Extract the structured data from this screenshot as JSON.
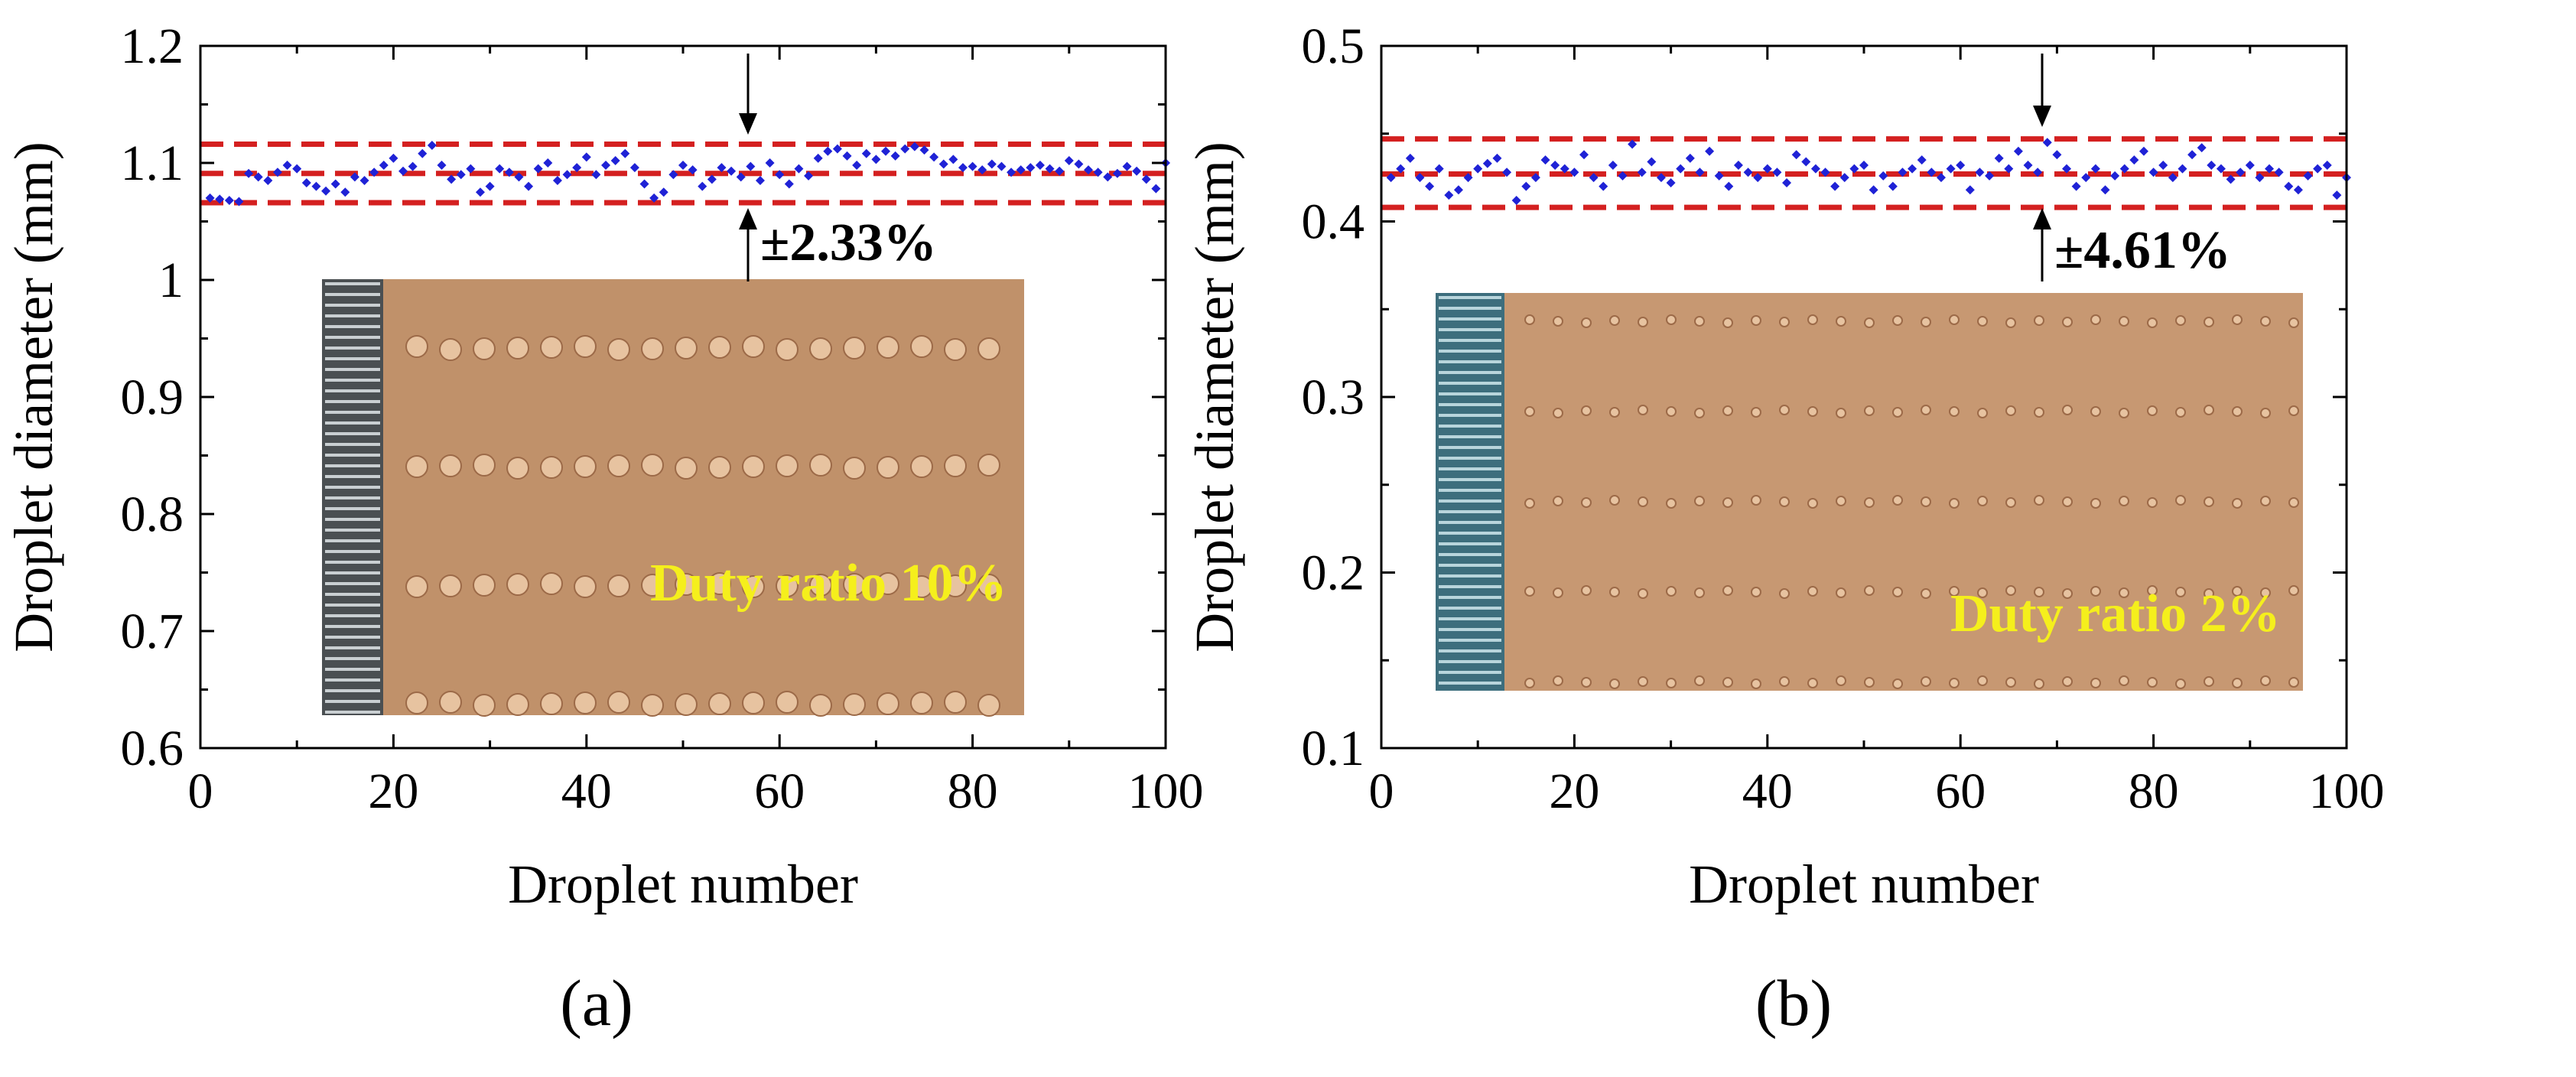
{
  "colors": {
    "points": "#1f22d6",
    "dashed": "#d42020",
    "duty_text": "#f5ef1c",
    "substrate": "#c99a72"
  },
  "chart_data": [
    {
      "type": "scatter",
      "panel_label": "(a)",
      "xlabel": "Droplet number",
      "ylabel": "Droplet diameter (mm)",
      "xlim": [
        0,
        100
      ],
      "ylim": [
        0.6,
        1.2
      ],
      "xticks": [
        "0",
        "20",
        "40",
        "60",
        "80",
        "100"
      ],
      "yticks": [
        "0.6",
        "0.7",
        "0.8",
        "0.9",
        "1",
        "1.1",
        "1.2"
      ],
      "reference_lines": [
        1.066,
        1.091,
        1.116
      ],
      "tolerance_label": "±2.33%",
      "inset_label": "Duty ratio 10%",
      "inset_rows": 4,
      "x": [
        1,
        2,
        3,
        4,
        5,
        6,
        7,
        8,
        9,
        10,
        11,
        12,
        13,
        14,
        15,
        16,
        17,
        18,
        19,
        20,
        21,
        22,
        23,
        24,
        25,
        26,
        27,
        28,
        29,
        30,
        31,
        32,
        33,
        34,
        35,
        36,
        37,
        38,
        39,
        40,
        41,
        42,
        43,
        44,
        45,
        46,
        47,
        48,
        49,
        50,
        51,
        52,
        53,
        54,
        55,
        56,
        57,
        58,
        59,
        60,
        61,
        62,
        63,
        64,
        65,
        66,
        67,
        68,
        69,
        70,
        71,
        72,
        73,
        74,
        75,
        76,
        77,
        78,
        79,
        80,
        81,
        82,
        83,
        84,
        85,
        86,
        87,
        88,
        89,
        90,
        91,
        92,
        93,
        94,
        95,
        96,
        97,
        98,
        99,
        100
      ],
      "y": [
        1.07,
        1.069,
        1.068,
        1.067,
        1.091,
        1.088,
        1.085,
        1.092,
        1.098,
        1.095,
        1.083,
        1.08,
        1.076,
        1.082,
        1.075,
        1.088,
        1.085,
        1.092,
        1.098,
        1.104,
        1.093,
        1.097,
        1.108,
        1.115,
        1.098,
        1.086,
        1.09,
        1.095,
        1.075,
        1.08,
        1.095,
        1.092,
        1.088,
        1.08,
        1.095,
        1.1,
        1.085,
        1.09,
        1.096,
        1.105,
        1.09,
        1.098,
        1.102,
        1.108,
        1.096,
        1.082,
        1.07,
        1.075,
        1.09,
        1.098,
        1.094,
        1.08,
        1.086,
        1.096,
        1.093,
        1.088,
        1.097,
        1.085,
        1.1,
        1.09,
        1.082,
        1.095,
        1.089,
        1.104,
        1.11,
        1.112,
        1.106,
        1.098,
        1.108,
        1.103,
        1.11,
        1.106,
        1.112,
        1.114,
        1.111,
        1.105,
        1.099,
        1.103,
        1.096,
        1.097,
        1.094,
        1.099,
        1.097,
        1.092,
        1.094,
        1.096,
        1.098,
        1.095,
        1.093,
        1.102,
        1.099,
        1.094,
        1.092,
        1.088,
        1.091,
        1.097,
        1.093,
        1.086,
        1.078,
        1.1
      ]
    },
    {
      "type": "scatter",
      "panel_label": "(b)",
      "xlabel": "Droplet number",
      "ylabel": "Droplet diameter (mm)",
      "xlim": [
        0,
        100
      ],
      "ylim": [
        0.1,
        0.5
      ],
      "xticks": [
        "0",
        "20",
        "40",
        "60",
        "80",
        "100"
      ],
      "yticks": [
        "0.1",
        "0.2",
        "0.3",
        "0.4",
        "0.5"
      ],
      "reference_lines": [
        0.408,
        0.427,
        0.447
      ],
      "tolerance_label": "±4.61%",
      "inset_label": "Duty ratio 2%",
      "inset_rows": 5,
      "x": [
        1,
        2,
        3,
        4,
        5,
        6,
        7,
        8,
        9,
        10,
        11,
        12,
        13,
        14,
        15,
        16,
        17,
        18,
        19,
        20,
        21,
        22,
        23,
        24,
        25,
        26,
        27,
        28,
        29,
        30,
        31,
        32,
        33,
        34,
        35,
        36,
        37,
        38,
        39,
        40,
        41,
        42,
        43,
        44,
        45,
        46,
        47,
        48,
        49,
        50,
        51,
        52,
        53,
        54,
        55,
        56,
        57,
        58,
        59,
        60,
        61,
        62,
        63,
        64,
        65,
        66,
        67,
        68,
        69,
        70,
        71,
        72,
        73,
        74,
        75,
        76,
        77,
        78,
        79,
        80,
        81,
        82,
        83,
        84,
        85,
        86,
        87,
        88,
        89,
        90,
        91,
        92,
        93,
        94,
        95,
        96,
        97,
        98,
        99,
        100
      ],
      "y": [
        0.425,
        0.43,
        0.436,
        0.425,
        0.42,
        0.43,
        0.415,
        0.418,
        0.425,
        0.43,
        0.433,
        0.436,
        0.428,
        0.412,
        0.42,
        0.425,
        0.435,
        0.432,
        0.43,
        0.428,
        0.438,
        0.425,
        0.42,
        0.432,
        0.426,
        0.444,
        0.428,
        0.434,
        0.425,
        0.422,
        0.43,
        0.436,
        0.428,
        0.44,
        0.426,
        0.42,
        0.432,
        0.428,
        0.425,
        0.43,
        0.428,
        0.422,
        0.438,
        0.434,
        0.43,
        0.428,
        0.42,
        0.425,
        0.43,
        0.432,
        0.418,
        0.426,
        0.42,
        0.428,
        0.43,
        0.435,
        0.428,
        0.425,
        0.43,
        0.432,
        0.418,
        0.428,
        0.426,
        0.436,
        0.43,
        0.44,
        0.432,
        0.428,
        0.445,
        0.438,
        0.43,
        0.42,
        0.425,
        0.43,
        0.418,
        0.426,
        0.43,
        0.435,
        0.44,
        0.428,
        0.432,
        0.425,
        0.43,
        0.438,
        0.442,
        0.432,
        0.43,
        0.424,
        0.428,
        0.432,
        0.425,
        0.43,
        0.428,
        0.42,
        0.418,
        0.426,
        0.43,
        0.432,
        0.415,
        0.425
      ]
    }
  ]
}
